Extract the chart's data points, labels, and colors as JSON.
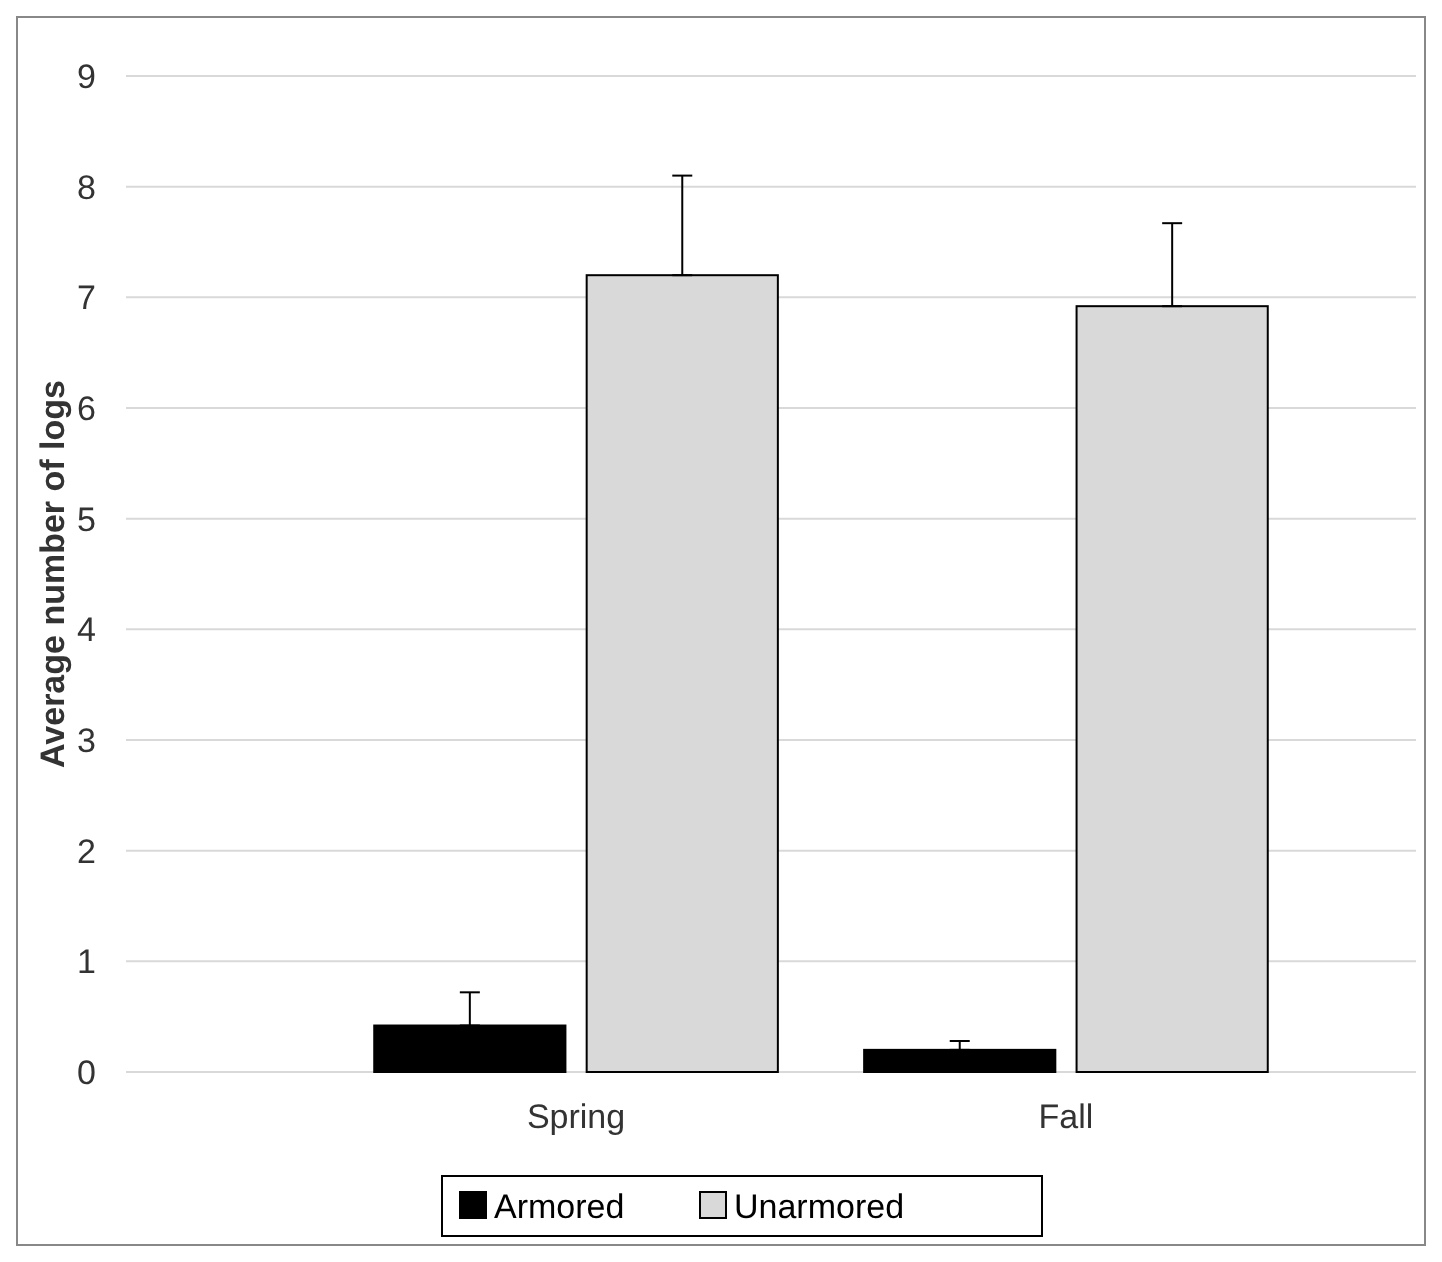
{
  "chart_data": {
    "type": "bar",
    "ylabel": "Average number of logs",
    "categories": [
      "Spring",
      "Fall"
    ],
    "series": [
      {
        "name": "Armored",
        "color": "#000000",
        "values": [
          0.42,
          0.2
        ],
        "errors": [
          [
            0.42,
            0.72
          ],
          [
            0.2,
            0.28
          ]
        ]
      },
      {
        "name": "Unarmored",
        "color": "#d9d9d9",
        "values": [
          7.2,
          6.92
        ],
        "errors": [
          [
            7.2,
            8.1
          ],
          [
            6.92,
            7.67
          ]
        ]
      }
    ],
    "ylim": [
      0,
      9
    ],
    "yticks": [
      0,
      1,
      2,
      3,
      4,
      5,
      6,
      7,
      8,
      9
    ],
    "grid": "y",
    "legend": "bottom"
  }
}
